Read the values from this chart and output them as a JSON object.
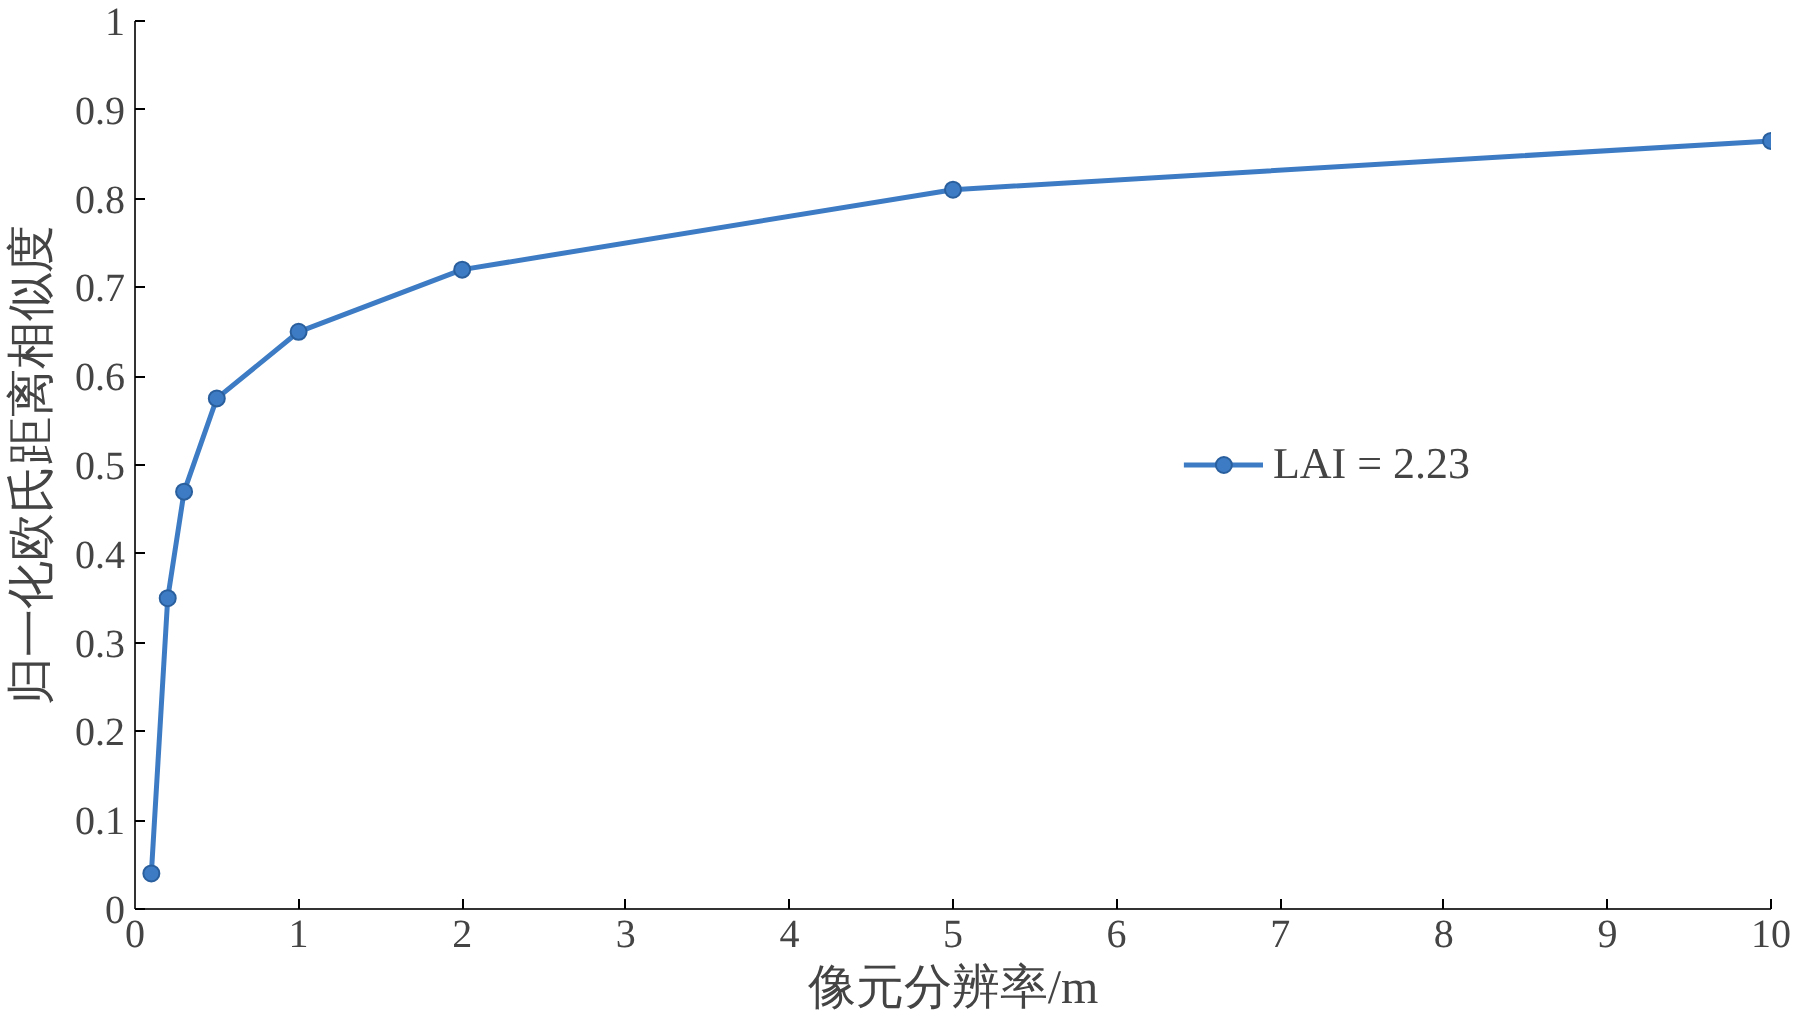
{
  "chart_data": {
    "type": "line",
    "xlabel": "像元分辨率/m",
    "ylabel": "归一化欧氏距离相似度",
    "x": [
      0.1,
      0.2,
      0.3,
      0.5,
      1,
      2,
      5,
      10
    ],
    "series": [
      {
        "name": "LAI = 2.23",
        "color": "#3d7cc4",
        "values": [
          0.04,
          0.35,
          0.47,
          0.575,
          0.65,
          0.72,
          0.81,
          0.865
        ]
      }
    ],
    "xlim": [
      0,
      10
    ],
    "xticks": [
      0,
      1,
      2,
      3,
      4,
      5,
      6,
      7,
      8,
      9,
      10
    ],
    "ylim": [
      0,
      1
    ],
    "yticks": [
      0,
      0.1,
      0.2,
      0.3,
      0.4,
      0.5,
      0.6,
      0.7,
      0.8,
      0.9,
      1
    ],
    "grid": false,
    "legend": "right",
    "marker": "circle",
    "line_style": "solid"
  }
}
